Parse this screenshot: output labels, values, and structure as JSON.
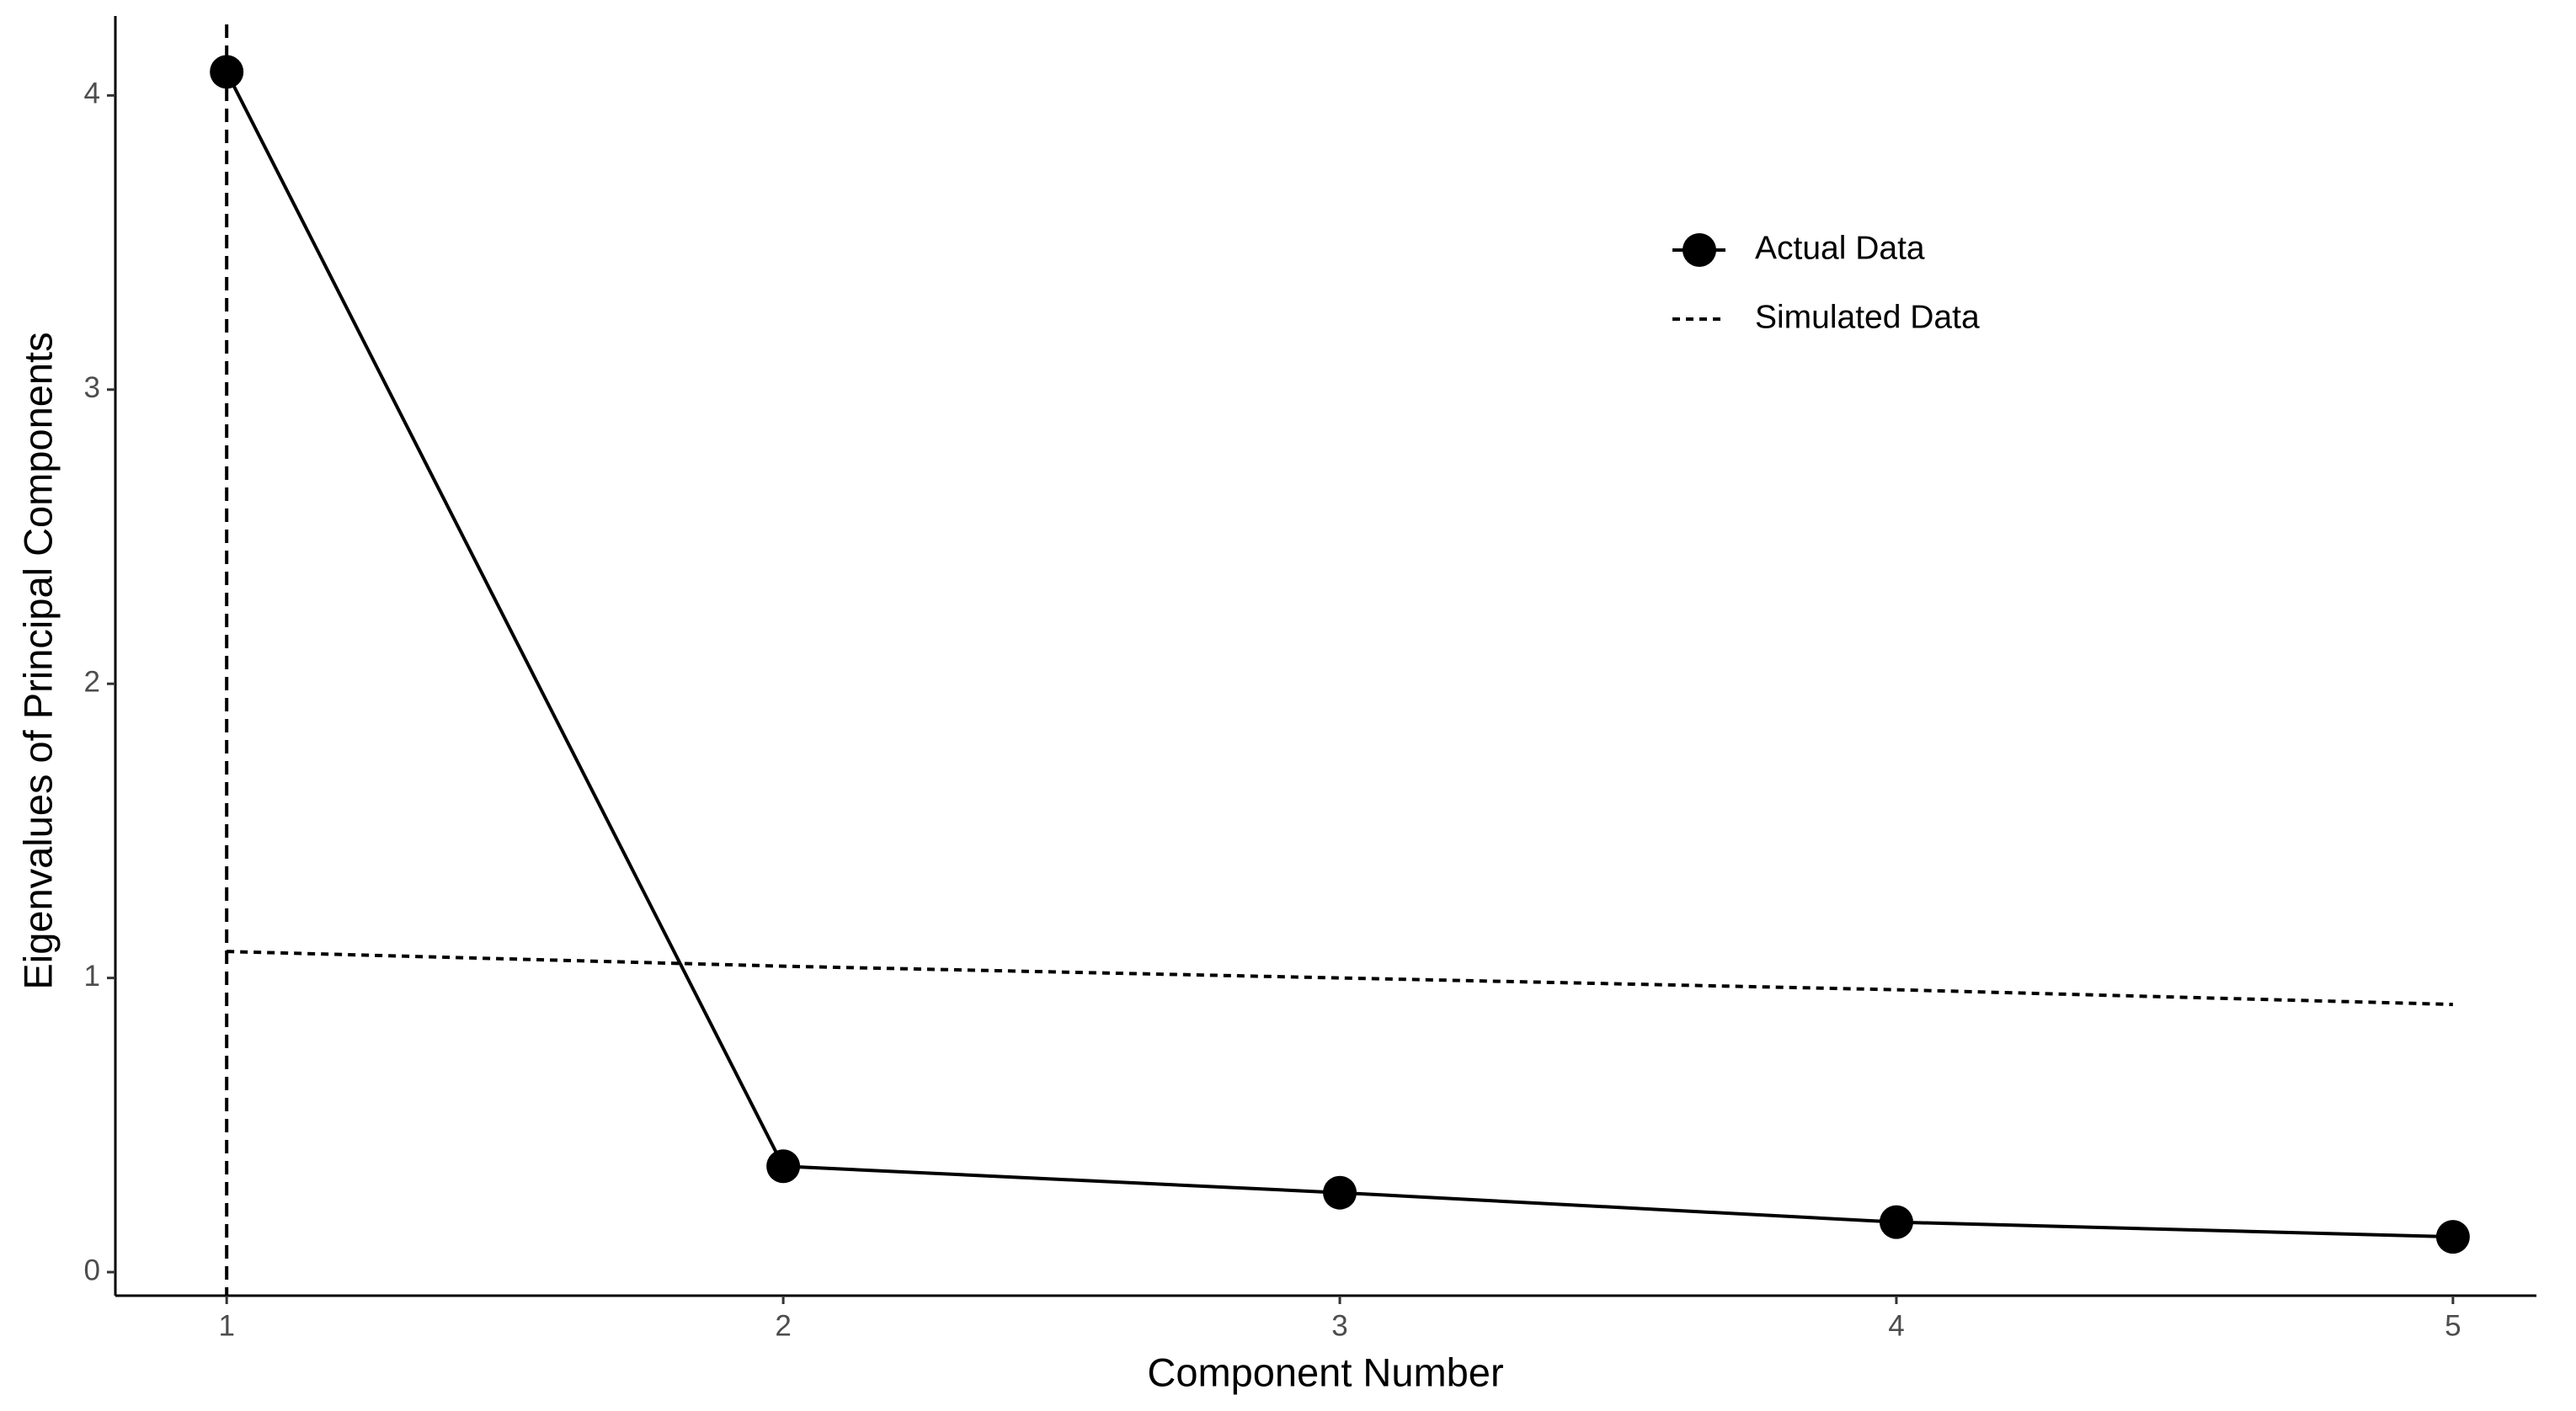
{
  "chart_data": {
    "type": "line",
    "x_label": "Component Number",
    "y_label": "Eigenvalues of Principal Components",
    "x": [
      1,
      2,
      3,
      4,
      5
    ],
    "series": [
      {
        "name": "Actual Data",
        "color": "#000000",
        "linestyle": "solid",
        "marker": true,
        "values": [
          4.08,
          0.36,
          0.27,
          0.17,
          0.12
        ]
      },
      {
        "name": "Simulated Data",
        "color": "#000000",
        "linestyle": "dashed",
        "marker": false,
        "values": [
          1.09,
          1.04,
          1.0,
          0.96,
          0.91
        ]
      }
    ],
    "vline": 1,
    "xlim": [
      0.8,
      5.15
    ],
    "xticks": [
      1,
      2,
      3,
      4,
      5
    ],
    "ylim": [
      -0.08,
      4.27
    ],
    "yticks": [
      0,
      1,
      2,
      3,
      4
    ],
    "grid": false,
    "legend": "top-right"
  }
}
